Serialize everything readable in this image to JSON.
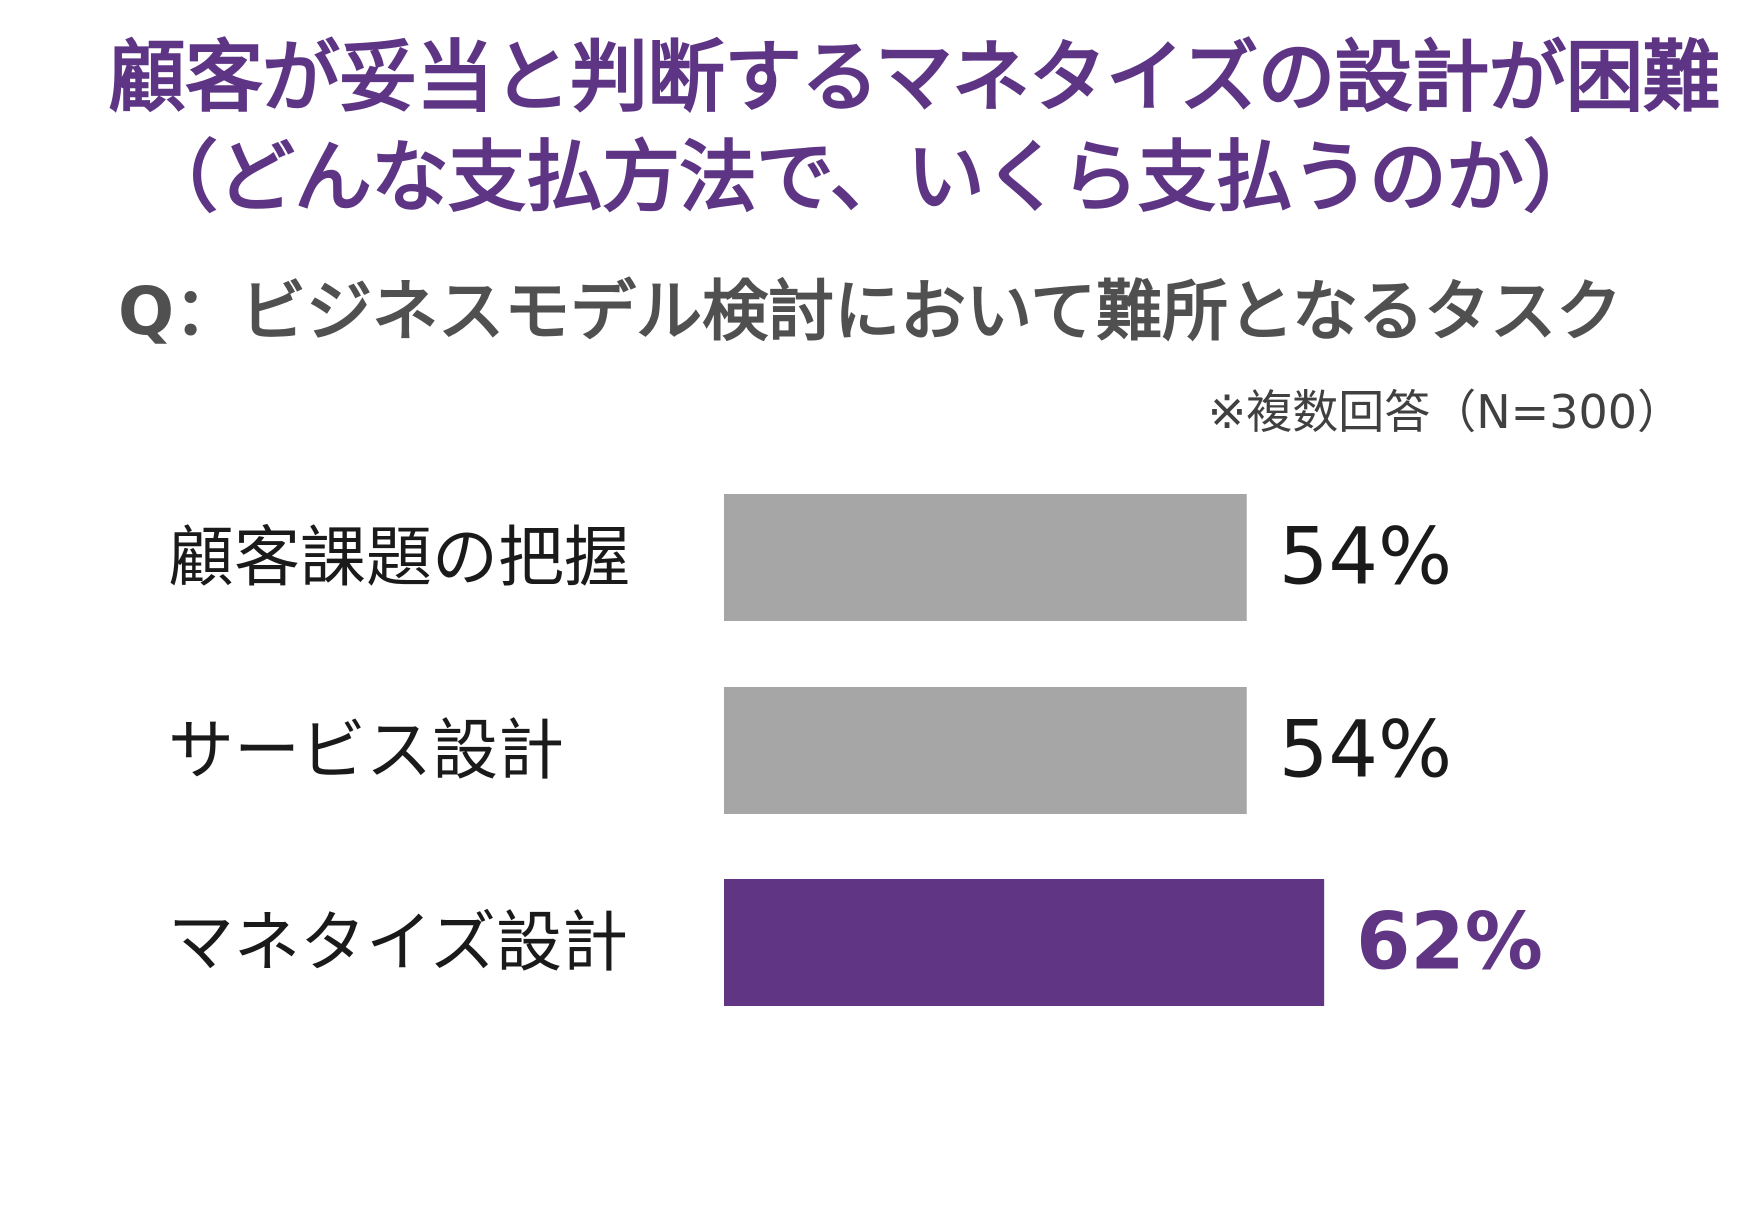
{
  "header": {
    "headline_line1": "顧客が妥当と判断するマネタイズの設計が困難",
    "headline_line2": "（どんな支払方法で、いくら支払うのか）",
    "question": "Q：ビジネスモデル検討において難所となるタスク",
    "note": "※複数回答（N=300）"
  },
  "colors": {
    "headline": "#5e3585",
    "default_bar": "#a6a6a6",
    "highlight_bar": "#5f3584",
    "default_value_text": "#1a1a1a",
    "highlight_value_text": "#5f3584"
  },
  "chart_data": {
    "type": "bar",
    "orientation": "horizontal",
    "categories": [
      "顧客課題の把握",
      "サービス設計",
      "マネタイズ設計"
    ],
    "values": [
      54,
      54,
      62
    ],
    "value_labels": [
      "54%",
      "54%",
      "62%"
    ],
    "highlight_index": 2,
    "unit": "%",
    "xlim": [
      0,
      100
    ],
    "grid": false,
    "legend": "none"
  }
}
